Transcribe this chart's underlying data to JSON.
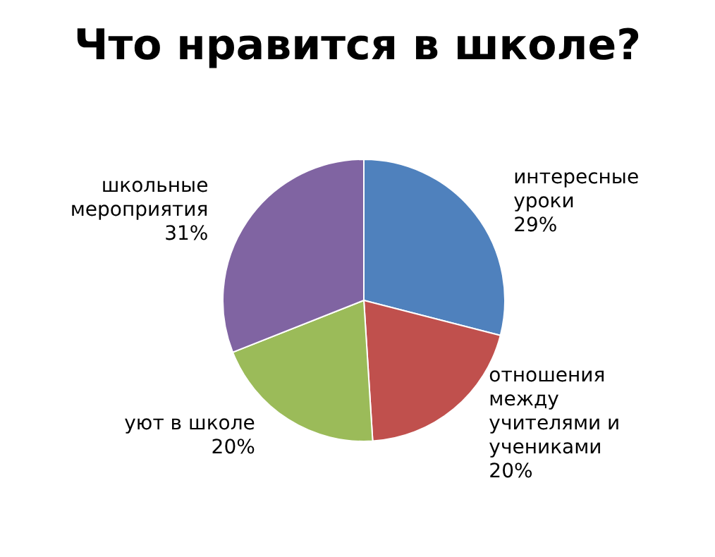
{
  "chart_data": {
    "type": "pie",
    "title": "Что нравится в школе?",
    "categories": [
      "интересные уроки",
      "отношения между учителями и учениками",
      "уют в школе",
      "школьные мероприятия"
    ],
    "values": [
      29,
      20,
      20,
      31
    ],
    "value_labels": [
      "29%",
      "20%",
      "20%",
      "31%"
    ],
    "colors": [
      "#4f81bd",
      "#c0504d",
      "#9bbb59",
      "#8064a2"
    ],
    "legend": false
  }
}
